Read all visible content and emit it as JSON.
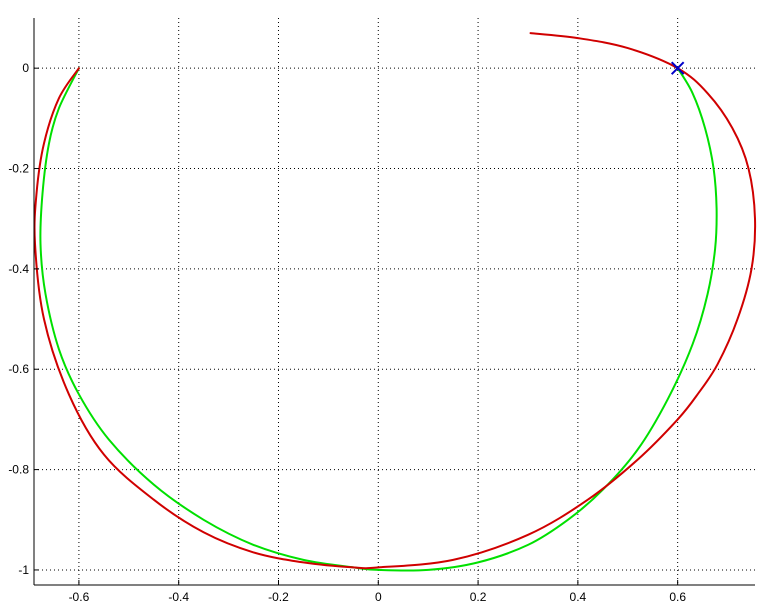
{
  "chart_data": {
    "type": "line",
    "title": "",
    "xlabel": "",
    "ylabel": "",
    "xlim": [
      -0.69,
      0.755
    ],
    "ylim": [
      -1.03,
      0.1
    ],
    "grid": true,
    "x_ticks": [
      -0.6,
      -0.4,
      -0.2,
      0,
      0.2,
      0.4,
      0.6
    ],
    "y_ticks": [
      0,
      -0.2,
      -0.4,
      -0.6,
      -0.8,
      -1
    ],
    "x_tick_labels": [
      "-0.6",
      "-0.4",
      "-0.2",
      "0",
      "0.2",
      "0.4",
      "0.6"
    ],
    "y_tick_labels": [
      "0",
      "-0.2",
      "-0.4",
      "-0.6",
      "-0.8",
      "-1"
    ],
    "series": [
      {
        "color": "#00e000",
        "x": [
          0.6,
          0.63,
          0.655,
          0.672,
          0.678,
          0.675,
          0.66,
          0.63,
          0.58,
          0.52,
          0.45,
          0.38,
          0.3,
          0.2,
          0.1,
          0.0,
          -0.05,
          -0.15,
          -0.25,
          -0.35,
          -0.45,
          -0.54,
          -0.6,
          -0.64,
          -0.667,
          -0.677,
          -0.673,
          -0.66,
          -0.64,
          -0.6
        ],
        "y": [
          0.0,
          -0.05,
          -0.12,
          -0.2,
          -0.28,
          -0.36,
          -0.45,
          -0.55,
          -0.66,
          -0.76,
          -0.84,
          -0.9,
          -0.95,
          -0.985,
          -1.0,
          -1.0,
          -0.995,
          -0.98,
          -0.95,
          -0.9,
          -0.83,
          -0.74,
          -0.65,
          -0.56,
          -0.45,
          -0.35,
          -0.25,
          -0.15,
          -0.08,
          0.0
        ]
      },
      {
        "color": "#d00000",
        "x": [
          0.305,
          0.4,
          0.5,
          0.6,
          0.66,
          0.71,
          0.742,
          0.755,
          0.748,
          0.72,
          0.68,
          0.64,
          0.6,
          0.52,
          0.42,
          0.3,
          0.15,
          0.0,
          -0.05,
          -0.15,
          -0.25,
          -0.35,
          -0.45,
          -0.55,
          -0.62,
          -0.67,
          -0.688,
          -0.685,
          -0.67,
          -0.64,
          -0.6
        ],
        "y": [
          0.07,
          0.06,
          0.04,
          0.0,
          -0.05,
          -0.12,
          -0.2,
          -0.3,
          -0.4,
          -0.5,
          -0.59,
          -0.65,
          -0.7,
          -0.78,
          -0.86,
          -0.93,
          -0.98,
          -0.995,
          -0.995,
          -0.985,
          -0.965,
          -0.925,
          -0.86,
          -0.77,
          -0.65,
          -0.5,
          -0.35,
          -0.25,
          -0.15,
          -0.06,
          0.0
        ]
      }
    ],
    "markers": [
      {
        "symbol": "x",
        "color": "#0000c8",
        "x": 0.6,
        "y": 0.0
      }
    ]
  }
}
